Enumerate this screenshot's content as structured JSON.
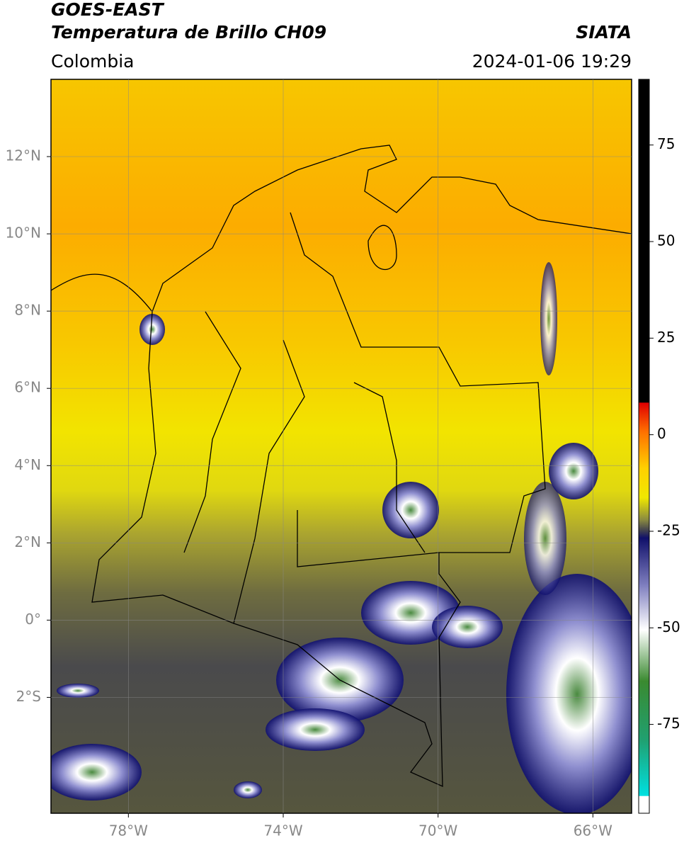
{
  "header": {
    "title_line_1": "GOES-EAST",
    "title_line_2": "Temperatura de Brillo CH09",
    "source": "SIATA",
    "region": "Colombia",
    "timestamp": "2024-01-06 19:29"
  },
  "map": {
    "lonlim": [
      -80,
      -65
    ],
    "latlim": [
      -5,
      14
    ],
    "xticks": [
      {
        "value": -78,
        "label": "78°W"
      },
      {
        "value": -74,
        "label": "74°W"
      },
      {
        "value": -70,
        "label": "70°W"
      },
      {
        "value": -66,
        "label": "66°W"
      }
    ],
    "yticks": [
      {
        "value": 12,
        "label": "12°N"
      },
      {
        "value": 10,
        "label": "10°N"
      },
      {
        "value": 8,
        "label": "8°N"
      },
      {
        "value": 6,
        "label": "6°N"
      },
      {
        "value": 4,
        "label": "4°N"
      },
      {
        "value": 2,
        "label": "2°N"
      },
      {
        "value": 0,
        "label": "0°"
      },
      {
        "value": -2,
        "label": "2°S"
      }
    ],
    "grid": true
  },
  "colorbar": {
    "clim": [
      -98,
      92
    ],
    "ticks": [
      75,
      50,
      25,
      0,
      -25,
      -50,
      -75
    ]
  }
}
